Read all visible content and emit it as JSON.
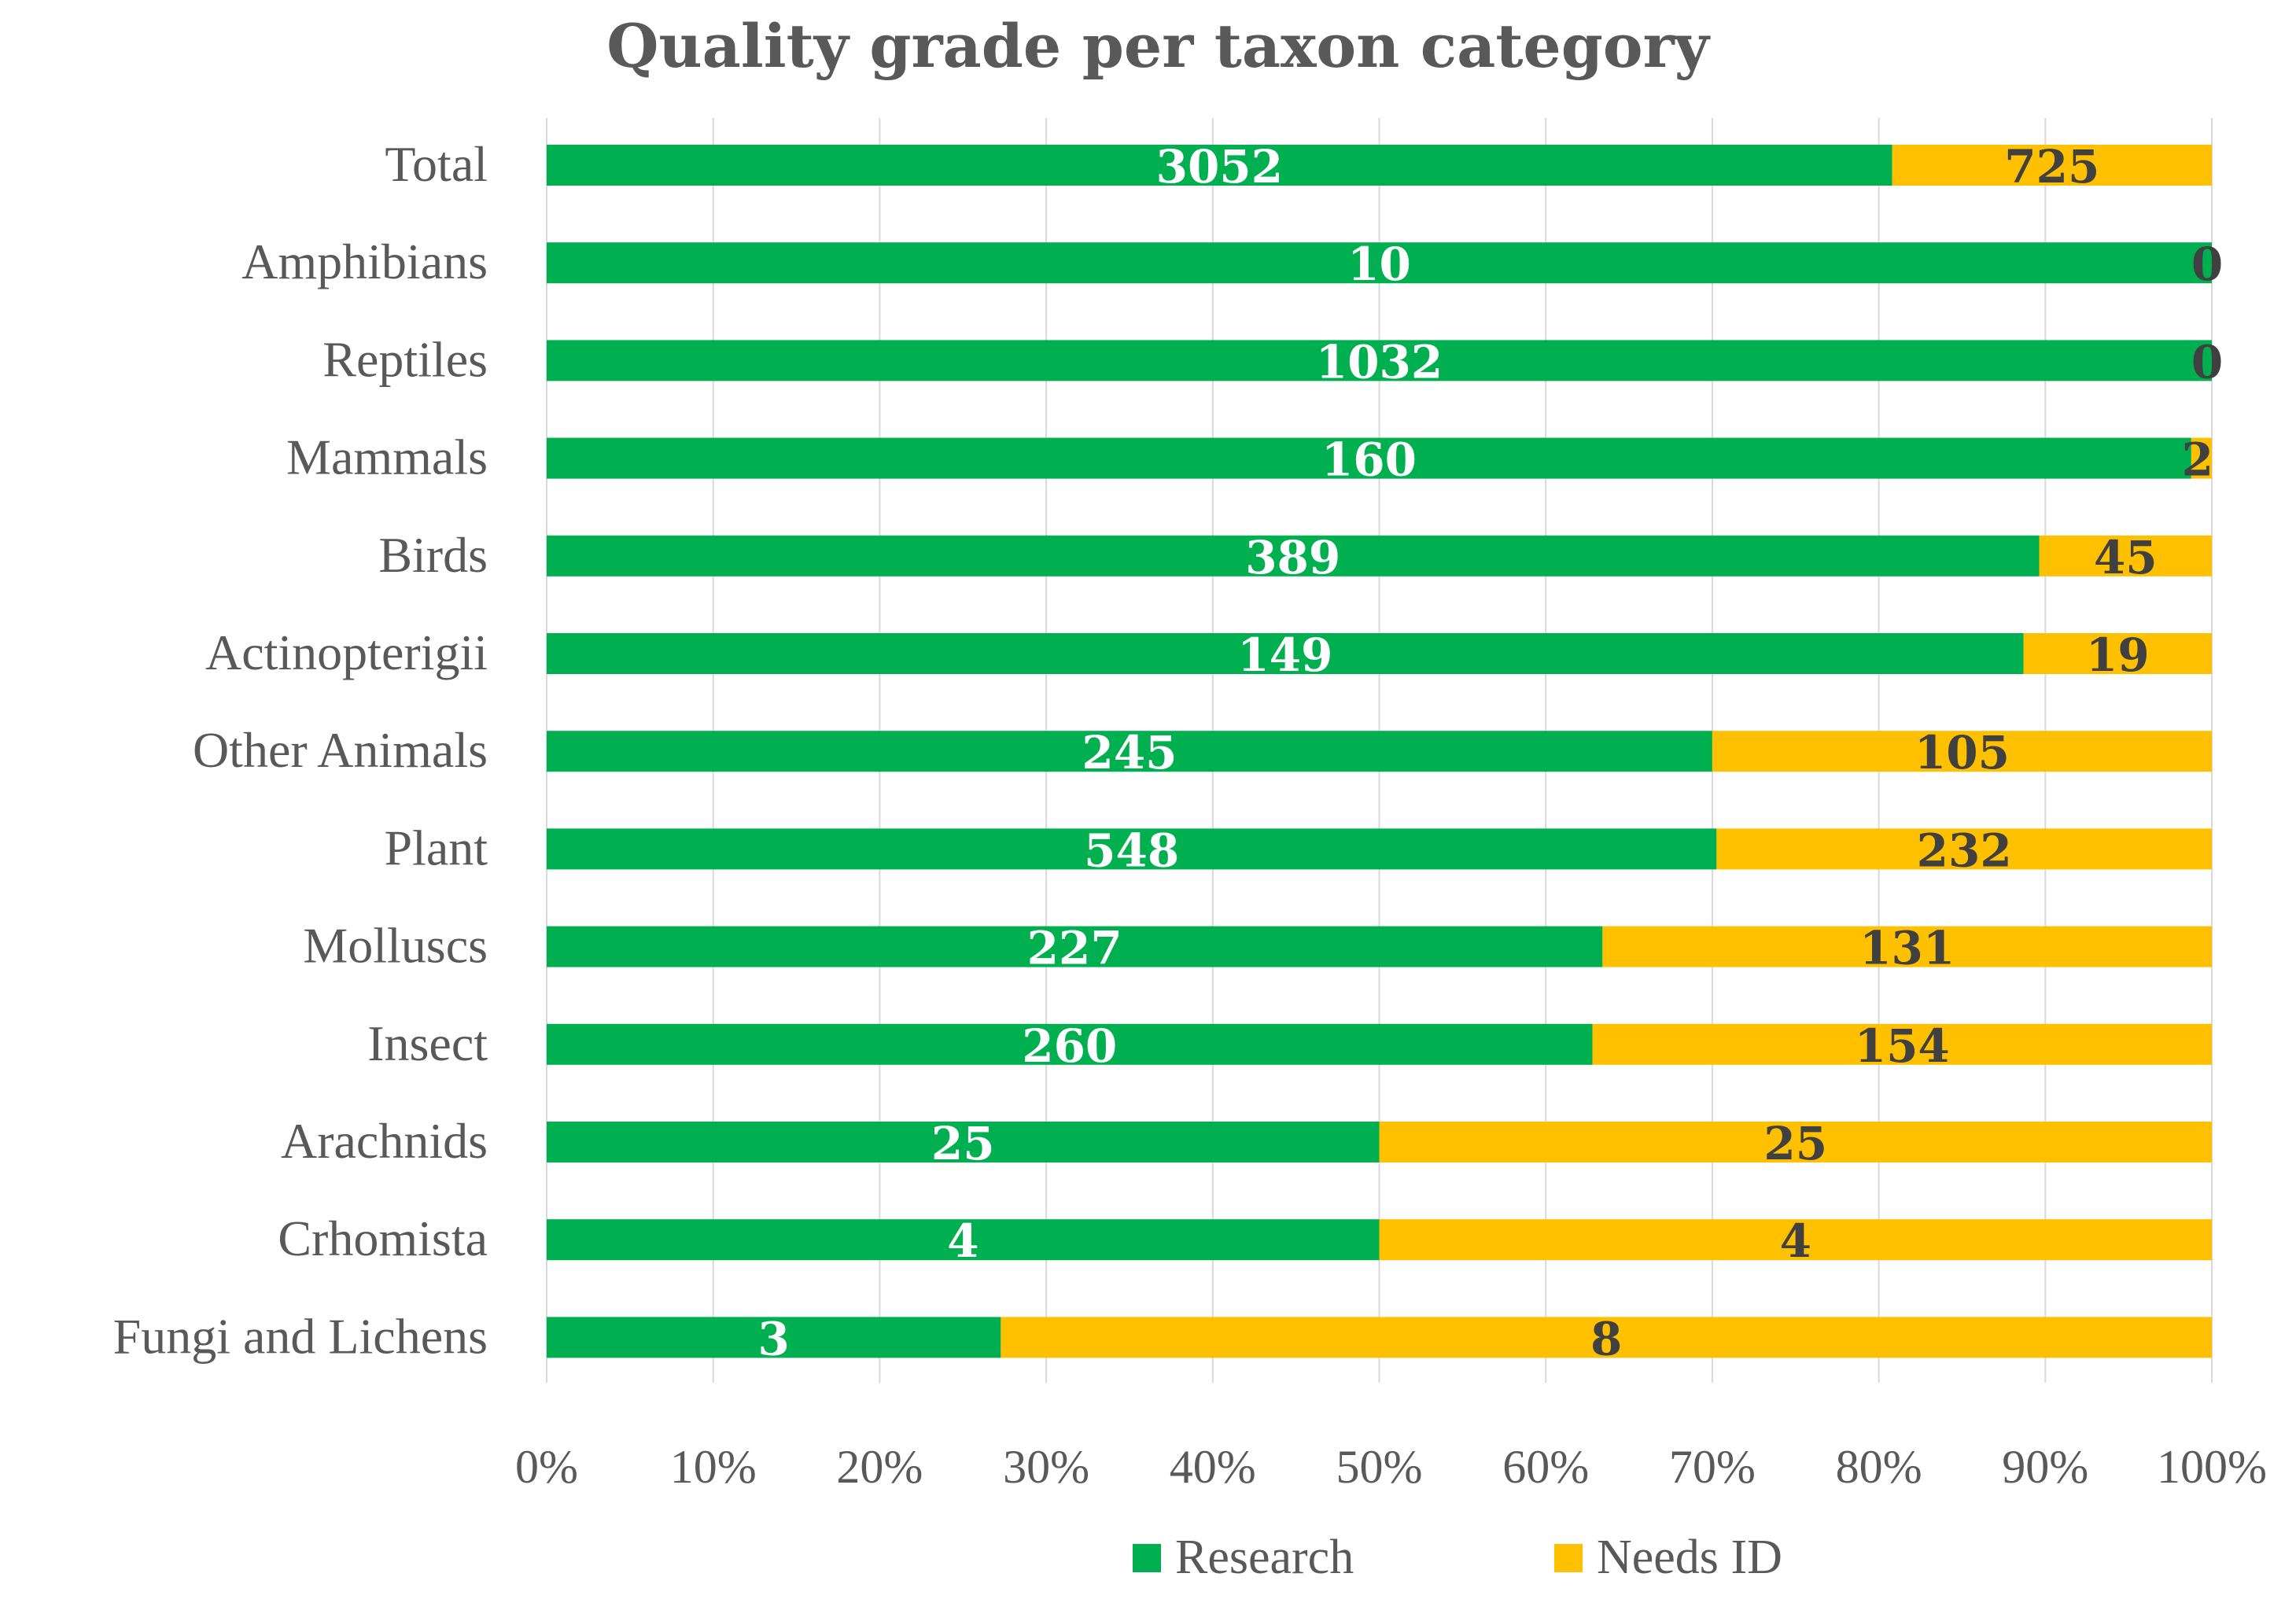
{
  "chart_data": {
    "type": "bar",
    "orientation": "horizontal",
    "stacked": "percent",
    "title": "Quality grade per taxon category",
    "categories": [
      "Total",
      "Amphibians",
      "Reptiles",
      "Mammals",
      "Birds",
      "Actinopterigii",
      "Other Animals",
      "Plant",
      "Molluscs",
      "Insect",
      "Arachnids",
      "Crhomista",
      "Fungi and Lichens"
    ],
    "series": [
      {
        "name": "Research",
        "color": "#00b050",
        "label_color": "#ffffff",
        "values": [
          3052,
          10,
          1032,
          160,
          389,
          149,
          245,
          548,
          227,
          260,
          25,
          4,
          3
        ]
      },
      {
        "name": "Needs ID",
        "color": "#ffc000",
        "label_color": "#404040",
        "values": [
          725,
          0,
          0,
          2,
          45,
          19,
          105,
          232,
          131,
          154,
          25,
          4,
          8
        ]
      }
    ],
    "xlim": [
      0,
      100
    ],
    "xticks": [
      "0%",
      "10%",
      "20%",
      "30%",
      "40%",
      "50%",
      "60%",
      "70%",
      "80%",
      "90%",
      "100%"
    ],
    "grid": true,
    "legend": "bottom"
  }
}
